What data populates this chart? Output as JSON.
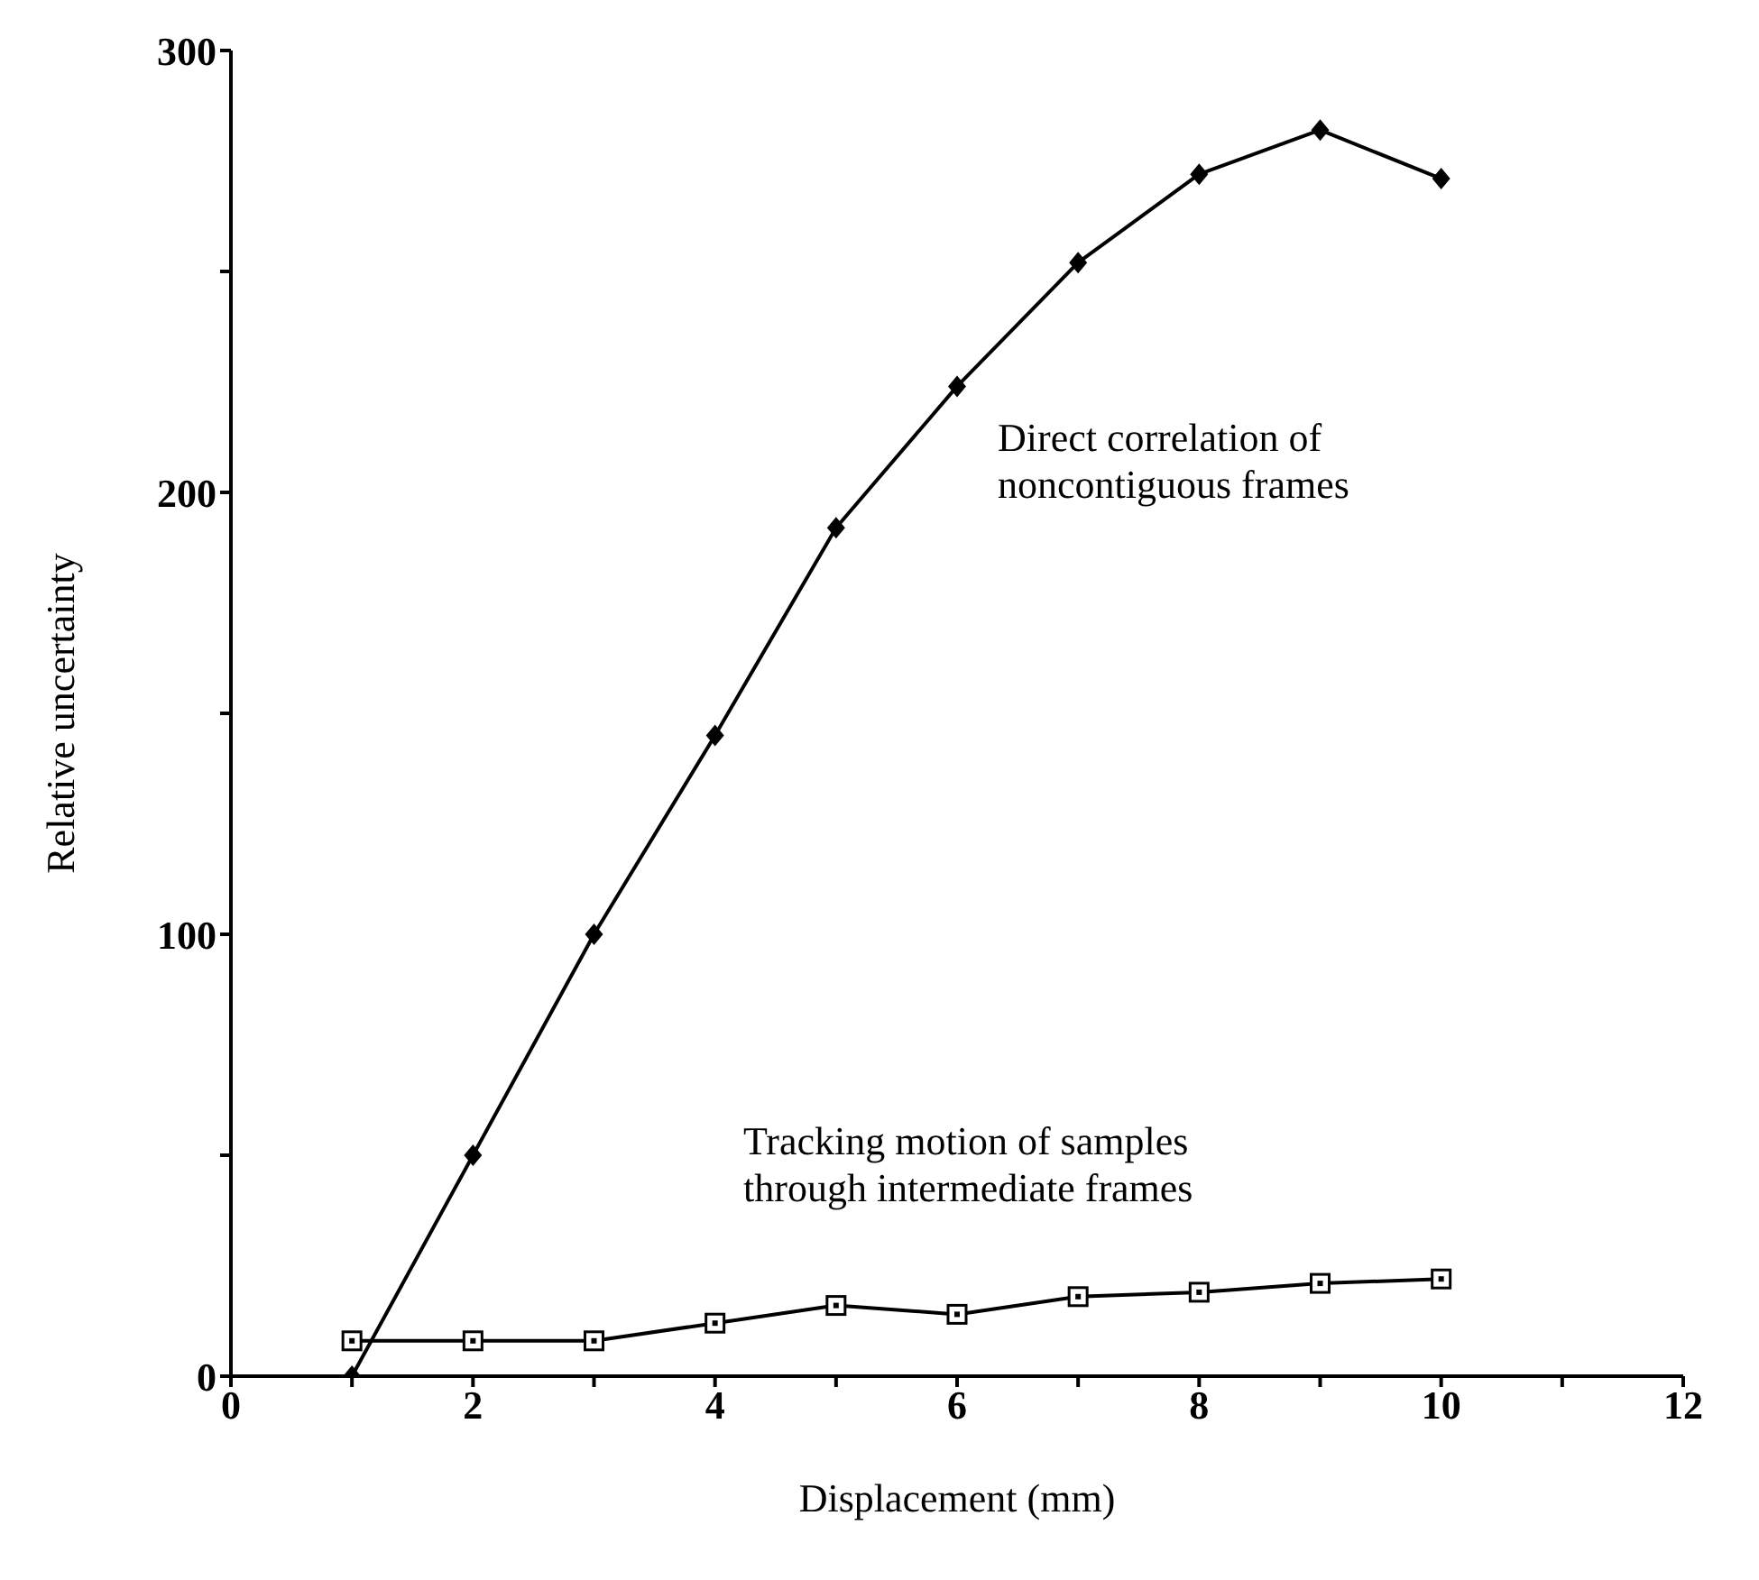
{
  "chart_data": {
    "type": "line",
    "xlabel": "Displacement (mm)",
    "ylabel": "Relative uncertainty",
    "x": [
      1,
      2,
      3,
      4,
      5,
      6,
      7,
      8,
      9,
      10
    ],
    "series": [
      {
        "color": "#000000",
        "marker": "diamond",
        "values": [
          0,
          50,
          100,
          145,
          192,
          224,
          252,
          272,
          282,
          271
        ]
      },
      {
        "color": "#000000",
        "marker": "square",
        "values": [
          8,
          8,
          8,
          12,
          16,
          14,
          18,
          19,
          21,
          22
        ]
      }
    ],
    "xlim": [
      0,
      12
    ],
    "xticks": [
      0,
      {
        "value": 1,
        "label": null
      },
      2,
      {
        "value": 3,
        "label": null
      },
      4,
      {
        "value": 5,
        "label": null
      },
      6,
      {
        "value": 7,
        "label": null
      },
      8,
      {
        "value": 9,
        "label": null
      },
      10,
      {
        "value": 11,
        "label": null
      },
      12
    ],
    "ylim": [
      0,
      300
    ],
    "yticks": [
      0,
      {
        "value": 50,
        "label": null
      },
      100,
      {
        "value": 150,
        "label": null
      },
      200,
      {
        "value": 250,
        "label": null
      },
      300
    ],
    "annotations": [
      "Direct correlation of noncontiguous frames",
      "Tracking motion of samples through intermediate frames"
    ],
    "grid": false,
    "legend": false,
    "line_style": "solid"
  }
}
